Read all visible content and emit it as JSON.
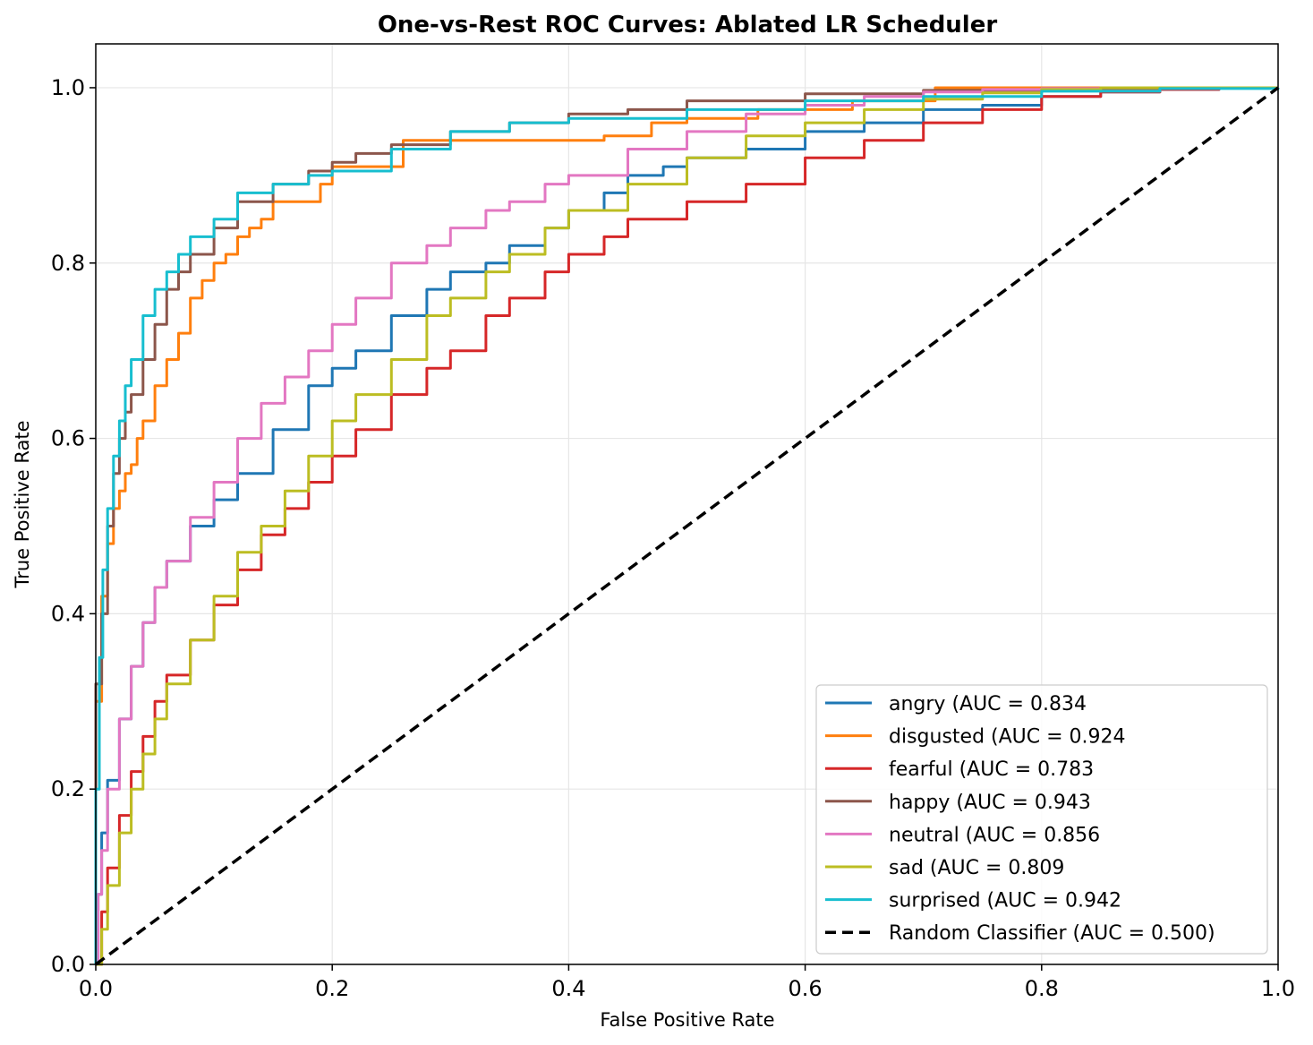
{
  "chart_data": {
    "type": "line",
    "title": "One-vs-Rest ROC Curves: Ablated LR Scheduler",
    "xlabel": "False Positive Rate",
    "ylabel": "True Positive Rate",
    "xlim": [
      0.0,
      1.0
    ],
    "ylim": [
      0.0,
      1.05
    ],
    "xticks": [
      0.0,
      0.2,
      0.4,
      0.6,
      0.8,
      1.0
    ],
    "yticks": [
      0.0,
      0.2,
      0.4,
      0.6,
      0.8,
      1.0
    ],
    "xtick_labels": [
      "0.0",
      "0.2",
      "0.4",
      "0.6",
      "0.8",
      "1.0"
    ],
    "ytick_labels": [
      "0.0",
      "0.2",
      "0.4",
      "0.6",
      "0.8",
      "1.0"
    ],
    "grid": true,
    "legend_position": "bottom-right",
    "series": [
      {
        "name": "angry",
        "label": "angry (AUC = 0.834",
        "auc": 0.834,
        "color": "#1f77b4",
        "x": [
          0.0,
          0.002,
          0.005,
          0.01,
          0.02,
          0.03,
          0.04,
          0.05,
          0.06,
          0.08,
          0.1,
          0.12,
          0.15,
          0.18,
          0.2,
          0.22,
          0.25,
          0.28,
          0.3,
          0.33,
          0.35,
          0.38,
          0.4,
          0.43,
          0.45,
          0.48,
          0.5,
          0.55,
          0.6,
          0.65,
          0.7,
          0.75,
          0.8,
          0.85,
          0.9,
          0.95,
          1.0
        ],
        "y": [
          0.0,
          0.08,
          0.15,
          0.21,
          0.28,
          0.34,
          0.39,
          0.43,
          0.46,
          0.5,
          0.53,
          0.56,
          0.61,
          0.66,
          0.68,
          0.7,
          0.74,
          0.77,
          0.79,
          0.8,
          0.82,
          0.84,
          0.86,
          0.88,
          0.9,
          0.91,
          0.92,
          0.93,
          0.95,
          0.96,
          0.975,
          0.98,
          0.99,
          0.995,
          0.998,
          1.0,
          1.0
        ]
      },
      {
        "name": "disgusted",
        "label": "disgusted (AUC = 0.924",
        "auc": 0.924,
        "color": "#ff7f0e",
        "x": [
          0.0,
          0.0,
          0.005,
          0.01,
          0.015,
          0.02,
          0.025,
          0.03,
          0.035,
          0.04,
          0.05,
          0.06,
          0.07,
          0.08,
          0.09,
          0.1,
          0.11,
          0.12,
          0.13,
          0.14,
          0.15,
          0.16,
          0.19,
          0.2,
          0.23,
          0.26,
          0.3,
          0.35,
          0.43,
          0.47,
          0.5,
          0.56,
          0.64,
          0.71,
          0.8,
          0.9,
          1.0
        ],
        "y": [
          0.0,
          0.3,
          0.42,
          0.48,
          0.52,
          0.54,
          0.56,
          0.57,
          0.6,
          0.62,
          0.66,
          0.69,
          0.72,
          0.76,
          0.78,
          0.8,
          0.81,
          0.83,
          0.84,
          0.85,
          0.87,
          0.87,
          0.89,
          0.91,
          0.91,
          0.94,
          0.94,
          0.94,
          0.945,
          0.96,
          0.965,
          0.975,
          0.985,
          1.0,
          1.0,
          1.0,
          1.0
        ]
      },
      {
        "name": "fearful",
        "label": "fearful (AUC = 0.783",
        "auc": 0.783,
        "color": "#d62728",
        "x": [
          0.0,
          0.005,
          0.01,
          0.02,
          0.03,
          0.04,
          0.05,
          0.06,
          0.08,
          0.1,
          0.12,
          0.14,
          0.16,
          0.18,
          0.2,
          0.22,
          0.25,
          0.28,
          0.3,
          0.33,
          0.35,
          0.38,
          0.4,
          0.43,
          0.45,
          0.5,
          0.55,
          0.6,
          0.65,
          0.7,
          0.75,
          0.8,
          0.85,
          0.9,
          0.95,
          1.0
        ],
        "y": [
          0.0,
          0.06,
          0.11,
          0.17,
          0.22,
          0.26,
          0.3,
          0.33,
          0.37,
          0.41,
          0.45,
          0.49,
          0.52,
          0.55,
          0.58,
          0.61,
          0.65,
          0.68,
          0.7,
          0.74,
          0.76,
          0.79,
          0.81,
          0.83,
          0.85,
          0.87,
          0.89,
          0.92,
          0.94,
          0.96,
          0.975,
          0.99,
          0.995,
          0.998,
          1.0,
          1.0
        ]
      },
      {
        "name": "happy",
        "label": "happy (AUC = 0.943",
        "auc": 0.943,
        "color": "#8c564b",
        "x": [
          0.0,
          0.0,
          0.005,
          0.01,
          0.015,
          0.02,
          0.025,
          0.03,
          0.04,
          0.05,
          0.06,
          0.07,
          0.08,
          0.1,
          0.12,
          0.15,
          0.18,
          0.2,
          0.22,
          0.25,
          0.3,
          0.35,
          0.4,
          0.45,
          0.5,
          0.6,
          0.7,
          0.8,
          0.9,
          1.0
        ],
        "y": [
          0.0,
          0.32,
          0.4,
          0.5,
          0.56,
          0.6,
          0.63,
          0.65,
          0.69,
          0.73,
          0.77,
          0.79,
          0.81,
          0.84,
          0.87,
          0.89,
          0.905,
          0.915,
          0.925,
          0.935,
          0.95,
          0.96,
          0.97,
          0.975,
          0.985,
          0.993,
          0.997,
          0.999,
          1.0,
          1.0
        ]
      },
      {
        "name": "neutral",
        "label": "neutral (AUC = 0.856",
        "auc": 0.856,
        "color": "#e377c2",
        "x": [
          0.0,
          0.002,
          0.005,
          0.01,
          0.02,
          0.03,
          0.04,
          0.05,
          0.06,
          0.08,
          0.1,
          0.12,
          0.14,
          0.16,
          0.18,
          0.2,
          0.22,
          0.25,
          0.28,
          0.3,
          0.33,
          0.35,
          0.38,
          0.4,
          0.45,
          0.5,
          0.55,
          0.6,
          0.65,
          0.7,
          0.75,
          0.8,
          0.85,
          0.9,
          0.95,
          1.0
        ],
        "y": [
          0.0,
          0.08,
          0.13,
          0.2,
          0.28,
          0.34,
          0.39,
          0.43,
          0.46,
          0.51,
          0.55,
          0.6,
          0.64,
          0.67,
          0.7,
          0.73,
          0.76,
          0.8,
          0.82,
          0.84,
          0.86,
          0.87,
          0.89,
          0.9,
          0.93,
          0.95,
          0.97,
          0.98,
          0.99,
          0.995,
          0.998,
          0.999,
          1.0,
          1.0,
          1.0,
          1.0
        ]
      },
      {
        "name": "sad",
        "label": "sad (AUC = 0.809",
        "auc": 0.809,
        "color": "#bcbd22",
        "x": [
          0.0,
          0.005,
          0.01,
          0.02,
          0.03,
          0.04,
          0.05,
          0.06,
          0.08,
          0.1,
          0.12,
          0.14,
          0.16,
          0.18,
          0.2,
          0.22,
          0.25,
          0.28,
          0.3,
          0.33,
          0.35,
          0.38,
          0.4,
          0.45,
          0.5,
          0.55,
          0.6,
          0.65,
          0.7,
          0.75,
          0.8,
          0.85,
          0.9,
          0.95,
          1.0
        ],
        "y": [
          0.0,
          0.04,
          0.09,
          0.15,
          0.2,
          0.24,
          0.28,
          0.32,
          0.37,
          0.42,
          0.47,
          0.5,
          0.54,
          0.58,
          0.62,
          0.65,
          0.69,
          0.74,
          0.76,
          0.79,
          0.81,
          0.84,
          0.86,
          0.89,
          0.92,
          0.945,
          0.96,
          0.975,
          0.987,
          0.994,
          0.998,
          1.0,
          1.0,
          1.0,
          1.0
        ]
      },
      {
        "name": "surprised",
        "label": "surprised (AUC = 0.942",
        "auc": 0.942,
        "color": "#17becf",
        "x": [
          0.0,
          0.0,
          0.003,
          0.006,
          0.01,
          0.015,
          0.02,
          0.025,
          0.03,
          0.04,
          0.05,
          0.06,
          0.07,
          0.08,
          0.1,
          0.12,
          0.15,
          0.18,
          0.2,
          0.25,
          0.3,
          0.35,
          0.4,
          0.5,
          0.6,
          0.7,
          0.8,
          0.9,
          1.0
        ],
        "y": [
          0.0,
          0.2,
          0.35,
          0.45,
          0.52,
          0.58,
          0.62,
          0.66,
          0.69,
          0.74,
          0.77,
          0.79,
          0.81,
          0.83,
          0.85,
          0.88,
          0.89,
          0.9,
          0.905,
          0.93,
          0.95,
          0.96,
          0.965,
          0.975,
          0.985,
          0.99,
          0.996,
          0.999,
          1.0
        ]
      },
      {
        "name": "random",
        "label": "Random Classifier (AUC = 0.500)",
        "auc": 0.5,
        "color": "#000000",
        "dashed": true,
        "x": [
          0.0,
          1.0
        ],
        "y": [
          0.0,
          1.0
        ]
      }
    ]
  }
}
